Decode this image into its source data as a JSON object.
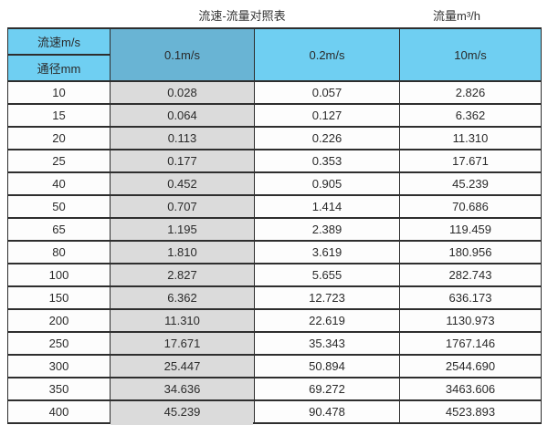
{
  "page": {
    "caption_left": "流速-流量对照表",
    "caption_right": "流量m³/h"
  },
  "colors": {
    "header_blue": "#6FCFF2",
    "header_dark_blue": "#69B4D4",
    "gray_column": "#DBDBDB",
    "border": "#2E2E2E",
    "background": "#FFFFFF"
  },
  "chart_data": {
    "type": "table",
    "title": "流速-流量对照表",
    "right_caption": "流量m³/h",
    "corner_top_label": "流速m/s",
    "corner_bottom_label": "通径mm",
    "velocity_headers": [
      "0.1m/s",
      "0.2m/s",
      "10m/s"
    ],
    "diameter_unit": "mm",
    "flow_unit": "m³/h",
    "rows": [
      {
        "dn": "10",
        "v01": "0.028",
        "v02": "0.057",
        "v10": "2.826"
      },
      {
        "dn": "15",
        "v01": "0.064",
        "v02": "0.127",
        "v10": "6.362"
      },
      {
        "dn": "20",
        "v01": "0.113",
        "v02": "0.226",
        "v10": "11.310"
      },
      {
        "dn": "25",
        "v01": "0.177",
        "v02": "0.353",
        "v10": "17.671"
      },
      {
        "dn": "40",
        "v01": "0.452",
        "v02": "0.905",
        "v10": "45.239"
      },
      {
        "dn": "50",
        "v01": "0.707",
        "v02": "1.414",
        "v10": "70.686"
      },
      {
        "dn": "65",
        "v01": "1.195",
        "v02": "2.389",
        "v10": "119.459"
      },
      {
        "dn": "80",
        "v01": "1.810",
        "v02": "3.619",
        "v10": "180.956"
      },
      {
        "dn": "100",
        "v01": "2.827",
        "v02": "5.655",
        "v10": "282.743"
      },
      {
        "dn": "150",
        "v01": "6.362",
        "v02": "12.723",
        "v10": "636.173"
      },
      {
        "dn": "200",
        "v01": "11.310",
        "v02": "22.619",
        "v10": "1130.973"
      },
      {
        "dn": "250",
        "v01": "17.671",
        "v02": "35.343",
        "v10": "1767.146"
      },
      {
        "dn": "300",
        "v01": "25.447",
        "v02": "50.894",
        "v10": "2544.690"
      },
      {
        "dn": "350",
        "v01": "34.636",
        "v02": "69.272",
        "v10": "3463.606"
      },
      {
        "dn": "400",
        "v01": "45.239",
        "v02": "90.478",
        "v10": "4523.893"
      }
    ]
  }
}
